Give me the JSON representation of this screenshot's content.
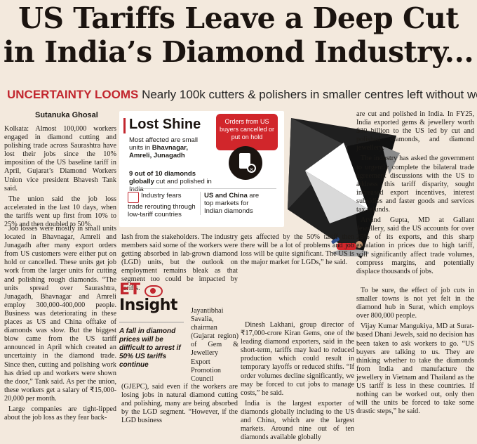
{
  "headline": {
    "line1": "US Tariffs Leave a Deep Cut",
    "line2": "in India’s Diamond Industry..."
  },
  "subhead": {
    "kicker": "UNCERTAINTY LOOMS",
    "text": "Nearly 100k cutters & polishers in smaller centres left without work"
  },
  "byline": "Sutanuka Ghosal",
  "infobox": {
    "title": "Lost Shine",
    "affected_pre": "Most affected are small units in ",
    "affected_places": "Bhavnagar, Amreli, Junagadh",
    "red_box": "Orders from US buyers cancelled or put on hold",
    "nine_bold": "9 out of 10 diamonds globally",
    "nine_rest": " cut and polished in India",
    "industry": "Industry fears trade rerouting through low-tariff countries",
    "us_china_bold": "US and China",
    "us_china_rest": " are top markets for Indian diamonds"
  },
  "et": {
    "logo": "ET",
    "insight": "Insight",
    "text": "A fall in diamond prices will be difficult to arrest if 50% US tariffs continue"
  },
  "col1": [
    "Kolkata: Almost 100,000 workers engaged in diamond cutting and polishing trade across Saurashtra have lost their jobs since the 10% imposition of the US baseline tariff in April, Gujarat’s Diamond Workers Union vice president Bhavesh Tank said.",
    "The union said the job loss accelerated in the last 10 days, when the tariffs went up first from 10% to 25% and then doubled to 50%."
  ],
  "col1b": [
    "Job losses were mostly in small units located in Bhavnagar, Amreli and Junagadh after many export orders from US customers were either put on hold or cancelled. These units get job work from the larger units for cutting and polishing rough diamonds. “The units spread over Saurashtra, Junagadh, Bhavnagar and Amreli employ 300,000-400,000 people. Business was deteriorating in these places as US and China offtake of diamonds was slow. But the biggest blow came from the US tariff announced in April which created an uncertainty in the diamond trade. Since then, cutting and polishing work has dried up and workers were shown the door,” Tank said. As per the union, these workers get a salary of ₹15,000-20,000 per month.",
    "Large companies are tight-lipped about the job loss as they fear back-"
  ],
  "col2t": "lash from the stakeholders. The industry members said some of the workers were getting absorbed in lab-grown diamond (LGD) units, but the outlook on employment remains bleak as that segment too could be impacted by tariffs.",
  "col2r": "Jayantibhai Savalia, chairman (Gujarat region) of Gem & Jewellery Export Promotion Council",
  "col2b": "(GJEPC), said even if the workers are losing jobs in natural diamond cutting and polishing, many are being absorbed by the LGD segment. “However, if the LGD business",
  "col3t": "gets affected by the 50% tariff then there will be a lot of problems and job loss will be quite significant. The US is the major market for LGDs,” he said.",
  "col3": [
    "Dinesh Lakhani, group director of ₹17,000-crore Kiran Gems, one of the leading diamond exporters, said in the short-term, tariffs may lead to reduced production which could result in temporary layoffs or reduced shifts. “If order volumes decline significantly, we may be forced to cut jobs to manage costs,” he said.",
    "India is the largest exporter of diamonds globally including to the US and China, which are the largest markets. Around nine out of ten diamonds available globally"
  ],
  "col4": [
    "are cut and polished in India. In FY25, India exported gems & jewellery worth $30 billion to the US led by cut and polished diamonds, and diamond jewellery.",
    "The industry has asked the government to urgently complete the bilateral trade agreement discussions with the US to address this tariff disparity, sought increased export incentives, interest subsidies and faster goods and services tax refunds.",
    "Arvind Gupta, MD at Gallant Jewellery, said the US accounts for over 25% of its exports, and this sharp escalation in prices due to high tariff, will significantly affect trade volumes, compress margins, and potentially displace thousands of jobs."
  ],
  "col4b": [
    "To be sure, the effect of job cuts in smaller towns is not yet felt in the diamond hub in Surat, which employs over 800,000 people.",
    "Vijay Kumar Mangukiya, MD at Surat-based Dhani Jewels, said no decision has been taken to ask workers to go. “US buyers are talking to us. They are thinking whether to take the diamonds from India and manufacture the jewellery in Vietnam and Thailand as the US tariff is less in these countries. If nothing can be worked out, only then will the units be forced to take some drastic steps,” he said."
  ],
  "colors": {
    "accent": "#c2262e",
    "paper": "#f3e9dd",
    "ink": "#1d1a16"
  },
  "icons": [
    "document-cancel-icon",
    "trade-reroute-icon",
    "eye-icon",
    "diamond-illustration",
    "fallen-worker-illustration"
  ]
}
